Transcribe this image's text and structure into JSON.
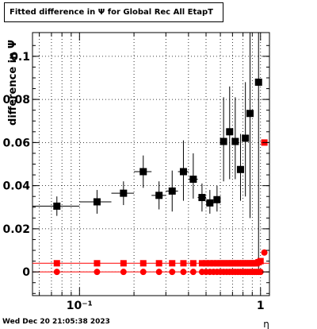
{
  "title": "Fitted difference in  Ψ  for Global Rec All EtapT",
  "footer": "Wed Dec 20 21:05:38 2023",
  "chart_data": {
    "type": "scatter",
    "xscale": "log",
    "xlim": [
      0.055,
      1.12
    ],
    "ylim": [
      -0.011,
      0.111
    ],
    "xlabel": "η",
    "ylabel": "difference in Ψ",
    "xtick_labels": [
      "10⁻¹",
      "1"
    ],
    "ytick_labels": [
      "0",
      "0.02",
      "0.04",
      "0.06",
      "0.08",
      "0.1"
    ],
    "grid": true,
    "series": [
      {
        "marker": "square",
        "color": "#000000",
        "points": [
          {
            "x": 0.075,
            "y": 0.0305,
            "xlo": 0.055,
            "xhi": 0.1,
            "ylo": 0.026,
            "yhi": 0.035
          },
          {
            "x": 0.125,
            "y": 0.0325,
            "xlo": 0.1,
            "xhi": 0.15,
            "ylo": 0.027,
            "yhi": 0.038
          },
          {
            "x": 0.175,
            "y": 0.0365,
            "xlo": 0.15,
            "xhi": 0.2,
            "ylo": 0.031,
            "yhi": 0.042
          },
          {
            "x": 0.225,
            "y": 0.0465,
            "xlo": 0.2,
            "xhi": 0.25,
            "ylo": 0.039,
            "yhi": 0.054
          },
          {
            "x": 0.275,
            "y": 0.0355,
            "xlo": 0.25,
            "xhi": 0.3,
            "ylo": 0.029,
            "yhi": 0.042
          },
          {
            "x": 0.325,
            "y": 0.0375,
            "xlo": 0.3,
            "xhi": 0.35,
            "ylo": 0.028,
            "yhi": 0.047
          },
          {
            "x": 0.375,
            "y": 0.0465,
            "xlo": 0.35,
            "xhi": 0.4,
            "ylo": 0.033,
            "yhi": 0.061
          },
          {
            "x": 0.425,
            "y": 0.043,
            "xlo": 0.4,
            "xhi": 0.45,
            "ylo": 0.034,
            "yhi": 0.055
          },
          {
            "x": 0.475,
            "y": 0.0345,
            "xlo": 0.45,
            "xhi": 0.5,
            "ylo": 0.028,
            "yhi": 0.041
          },
          {
            "x": 0.525,
            "y": 0.032,
            "xlo": 0.5,
            "xhi": 0.55,
            "ylo": 0.027,
            "yhi": 0.038
          },
          {
            "x": 0.575,
            "y": 0.0335,
            "xlo": 0.55,
            "xhi": 0.6,
            "ylo": 0.028,
            "yhi": 0.04
          },
          {
            "x": 0.625,
            "y": 0.0605,
            "xlo": 0.6,
            "xhi": 0.65,
            "ylo": 0.042,
            "yhi": 0.081
          },
          {
            "x": 0.675,
            "y": 0.065,
            "xlo": 0.65,
            "xhi": 0.7,
            "ylo": 0.043,
            "yhi": 0.086
          },
          {
            "x": 0.725,
            "y": 0.0605,
            "xlo": 0.7,
            "xhi": 0.75,
            "ylo": 0.043,
            "yhi": 0.081
          },
          {
            "x": 0.775,
            "y": 0.0475,
            "xlo": 0.75,
            "xhi": 0.8,
            "ylo": 0.033,
            "yhi": 0.064
          },
          {
            "x": 0.825,
            "y": 0.062,
            "xlo": 0.8,
            "xhi": 0.85,
            "ylo": 0.035,
            "yhi": 0.088
          },
          {
            "x": 0.875,
            "y": 0.0735,
            "xlo": 0.85,
            "xhi": 0.9,
            "ylo": 0.025,
            "yhi": 0.111
          },
          {
            "x": 0.975,
            "y": 0.088,
            "xlo": 0.95,
            "xhi": 1.0,
            "ylo": 0.0,
            "yhi": 0.111
          }
        ]
      },
      {
        "marker": "square",
        "color": "#ff0000",
        "points": [
          {
            "x": 0.075,
            "y": 0.004,
            "xlo": 0.055,
            "xhi": 1.1
          },
          {
            "x": 0.125,
            "y": 0.004
          },
          {
            "x": 0.175,
            "y": 0.004
          },
          {
            "x": 0.225,
            "y": 0.004
          },
          {
            "x": 0.275,
            "y": 0.004
          },
          {
            "x": 0.325,
            "y": 0.004
          },
          {
            "x": 0.375,
            "y": 0.004
          },
          {
            "x": 0.425,
            "y": 0.004
          },
          {
            "x": 0.475,
            "y": 0.004
          },
          {
            "x": 0.5,
            "y": 0.004
          },
          {
            "x": 0.525,
            "y": 0.004
          },
          {
            "x": 0.55,
            "y": 0.004
          },
          {
            "x": 0.575,
            "y": 0.004
          },
          {
            "x": 0.6,
            "y": 0.004
          },
          {
            "x": 0.625,
            "y": 0.004
          },
          {
            "x": 0.65,
            "y": 0.004
          },
          {
            "x": 0.675,
            "y": 0.004
          },
          {
            "x": 0.7,
            "y": 0.004
          },
          {
            "x": 0.725,
            "y": 0.004
          },
          {
            "x": 0.75,
            "y": 0.004
          },
          {
            "x": 0.775,
            "y": 0.004
          },
          {
            "x": 0.8,
            "y": 0.004
          },
          {
            "x": 0.825,
            "y": 0.004
          },
          {
            "x": 0.85,
            "y": 0.004
          },
          {
            "x": 0.875,
            "y": 0.004
          },
          {
            "x": 0.9,
            "y": 0.004
          },
          {
            "x": 0.925,
            "y": 0.004
          },
          {
            "x": 0.95,
            "y": 0.004
          },
          {
            "x": 0.975,
            "y": 0.0045
          },
          {
            "x": 1.0,
            "y": 0.005
          },
          {
            "x": 1.05,
            "y": 0.06
          }
        ]
      },
      {
        "marker": "circle",
        "color": "#ff0000",
        "points": [
          {
            "x": 0.075,
            "y": 0.0
          },
          {
            "x": 0.125,
            "y": 0.0
          },
          {
            "x": 0.175,
            "y": 0.0
          },
          {
            "x": 0.225,
            "y": 0.0
          },
          {
            "x": 0.275,
            "y": 0.0
          },
          {
            "x": 0.325,
            "y": 0.0
          },
          {
            "x": 0.375,
            "y": 0.0
          },
          {
            "x": 0.425,
            "y": 0.0
          },
          {
            "x": 0.475,
            "y": 0.0
          },
          {
            "x": 0.5,
            "y": 0.0
          },
          {
            "x": 0.525,
            "y": 0.0
          },
          {
            "x": 0.55,
            "y": 0.0
          },
          {
            "x": 0.575,
            "y": 0.0
          },
          {
            "x": 0.6,
            "y": 0.0
          },
          {
            "x": 0.625,
            "y": 0.0
          },
          {
            "x": 0.65,
            "y": 0.0
          },
          {
            "x": 0.675,
            "y": 0.0
          },
          {
            "x": 0.7,
            "y": 0.0
          },
          {
            "x": 0.725,
            "y": 0.0
          },
          {
            "x": 0.75,
            "y": 0.0
          },
          {
            "x": 0.775,
            "y": 0.0
          },
          {
            "x": 0.8,
            "y": 0.0
          },
          {
            "x": 0.825,
            "y": 0.0
          },
          {
            "x": 0.85,
            "y": 0.0
          },
          {
            "x": 0.875,
            "y": 0.0
          },
          {
            "x": 0.9,
            "y": 0.0
          },
          {
            "x": 0.925,
            "y": 0.0
          },
          {
            "x": 0.95,
            "y": 0.0
          },
          {
            "x": 0.975,
            "y": 0.0
          },
          {
            "x": 1.0,
            "y": 0.0
          },
          {
            "x": 1.05,
            "y": 0.009
          }
        ]
      }
    ],
    "reference_lines": [
      0.0,
      0.004
    ]
  }
}
